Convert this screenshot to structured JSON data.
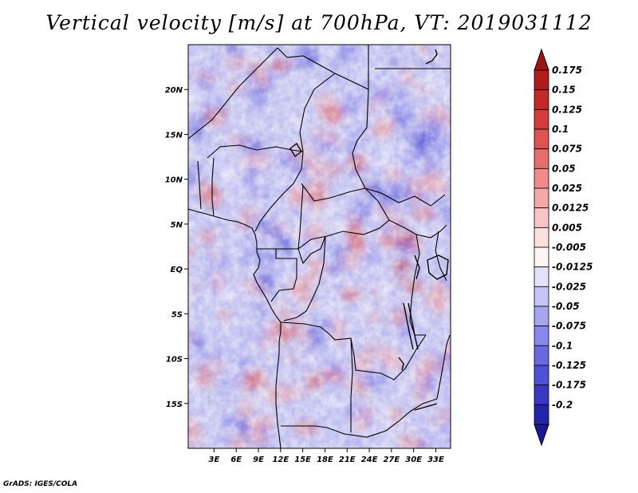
{
  "title": "Vertical velocity [m/s] at 700hPa, VT: 2019031112",
  "footer": "GrADS: IGES/COLA",
  "map": {
    "variable": "Vertical velocity",
    "units": "m/s",
    "level": "700hPa",
    "valid_time": "2019031112",
    "lon_range": [
      -0.5,
      35.0
    ],
    "lat_range": [
      -20.0,
      25.0
    ],
    "x_ticks": [
      {
        "value": 3,
        "label": "3E"
      },
      {
        "value": 6,
        "label": "6E"
      },
      {
        "value": 9,
        "label": "9E"
      },
      {
        "value": 12,
        "label": "12E"
      },
      {
        "value": 15,
        "label": "15E"
      },
      {
        "value": 18,
        "label": "18E"
      },
      {
        "value": 21,
        "label": "21E"
      },
      {
        "value": 24,
        "label": "24E"
      },
      {
        "value": 27,
        "label": "27E"
      },
      {
        "value": 30,
        "label": "30E"
      },
      {
        "value": 33,
        "label": "33E"
      }
    ],
    "y_ticks": [
      {
        "value": 20,
        "label": "20N"
      },
      {
        "value": 15,
        "label": "15N"
      },
      {
        "value": 10,
        "label": "10N"
      },
      {
        "value": 5,
        "label": "5N"
      },
      {
        "value": 0,
        "label": "EQ"
      },
      {
        "value": -5,
        "label": "5S"
      },
      {
        "value": -10,
        "label": "10S"
      },
      {
        "value": -15,
        "label": "15S"
      }
    ]
  },
  "colorbar": {
    "levels": [
      {
        "label": "0.175",
        "color": "#b01c1c"
      },
      {
        "label": "0.15",
        "color": "#c22a2a"
      },
      {
        "label": "0.125",
        "color": "#d23c3c"
      },
      {
        "label": "0.1",
        "color": "#de5252"
      },
      {
        "label": "0.075",
        "color": "#e66e6e"
      },
      {
        "label": "0.05",
        "color": "#ee8c8c"
      },
      {
        "label": "0.025",
        "color": "#f4a8a8"
      },
      {
        "label": "0.0125",
        "color": "#f8c6c6"
      },
      {
        "label": "0.005",
        "color": "#fbe0e0"
      },
      {
        "label": "-0.005",
        "color": "#fdf4f4"
      },
      {
        "label": "-0.0125",
        "color": "#e2e2fa"
      },
      {
        "label": "-0.025",
        "color": "#c4c4f6"
      },
      {
        "label": "-0.05",
        "color": "#a6a6f0"
      },
      {
        "label": "-0.075",
        "color": "#8888ea"
      },
      {
        "label": "-0.1",
        "color": "#6a6ae0"
      },
      {
        "label": "-0.125",
        "color": "#5050d4"
      },
      {
        "label": "-0.175",
        "color": "#3838c2"
      },
      {
        "label": "-0.2",
        "color": "#2424aa"
      }
    ],
    "top_color": "#a01414",
    "bottom_color": "#1a1a90"
  },
  "field_colors": {
    "background": "#c8c8f2",
    "light": "#e8e8fa",
    "blue": "#7a7ae6",
    "deep_blue": "#5050d4",
    "pink": "#f2a2a2",
    "red": "#e05a5a",
    "deep_red": "#c22a2a"
  }
}
